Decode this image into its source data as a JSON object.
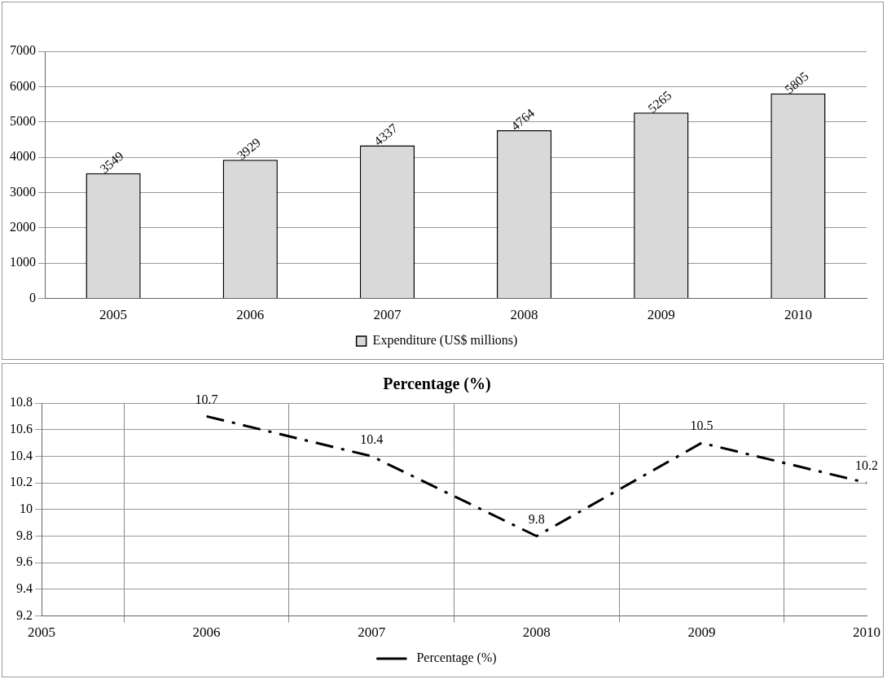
{
  "chart_data": [
    {
      "type": "bar",
      "categories": [
        "2005",
        "2006",
        "2007",
        "2008",
        "2009",
        "2010"
      ],
      "series": [
        {
          "name": "Expenditure (US$ millions)",
          "color": "#d9d9d9",
          "values": [
            3549,
            3929,
            4337,
            4764,
            5265,
            5805
          ]
        }
      ],
      "ylim": [
        0,
        7000
      ],
      "yticks": [
        0,
        1000,
        2000,
        3000,
        4000,
        5000,
        6000,
        7000
      ],
      "grid": "y",
      "legend": "bottom",
      "data_labels": true
    },
    {
      "type": "line",
      "title": "Percentage (%)",
      "categories": [
        "2005",
        "2006",
        "2007",
        "2008",
        "2009",
        "2010"
      ],
      "series": [
        {
          "name": "Percentage (%)",
          "color": "#000000",
          "values": [
            null,
            10.7,
            10.4,
            9.8,
            10.5,
            10.2
          ]
        }
      ],
      "ylim": [
        9.2,
        10.8
      ],
      "yticks": [
        9.2,
        9.4,
        9.6,
        9.8,
        10,
        10.2,
        10.4,
        10.6,
        10.8
      ],
      "grid": true,
      "legend": "bottom",
      "data_labels": true,
      "line_style": "dashed",
      "marker": "none"
    }
  ]
}
